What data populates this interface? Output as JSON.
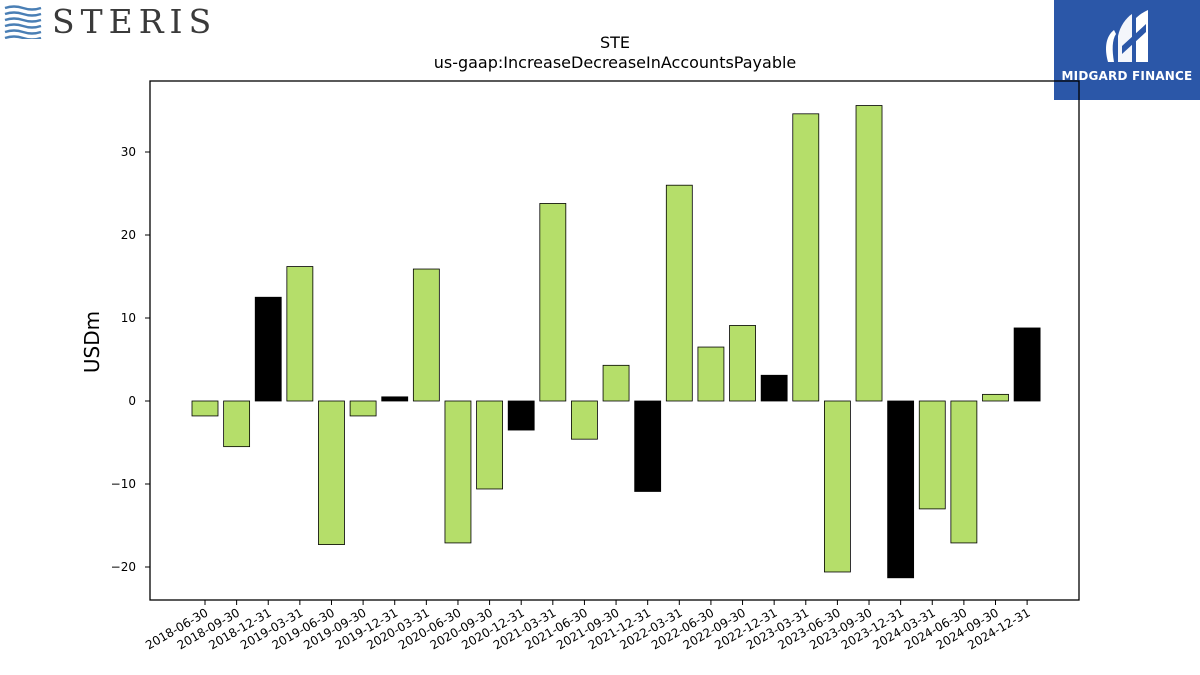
{
  "brand_left": {
    "name": "STERIS",
    "logo_icon": "wave-lines-icon",
    "color": "#4a7fb5"
  },
  "brand_right": {
    "name": "MIDGARD FINANCE",
    "logo_icon": "midgard-m-icon",
    "background": "#2b57a8"
  },
  "chart_data": {
    "type": "bar",
    "title": "STE",
    "subtitle": "us-gaap:IncreaseDecreaseInAccountsPayable",
    "xlabel": "",
    "ylabel": "USDm",
    "ylim": [
      -24,
      38.5
    ],
    "yticks": [
      -20,
      -10,
      0,
      10,
      20,
      30
    ],
    "grid": false,
    "colors": {
      "default": "#b5de6a",
      "q4": "#000000",
      "edge": "#000000"
    },
    "categories": [
      "2018-06-30",
      "2018-09-30",
      "2018-12-31",
      "2019-03-31",
      "2019-06-30",
      "2019-09-30",
      "2019-12-31",
      "2020-03-31",
      "2020-06-30",
      "2020-09-30",
      "2020-12-31",
      "2021-03-31",
      "2021-06-30",
      "2021-09-30",
      "2021-12-31",
      "2022-03-31",
      "2022-06-30",
      "2022-09-30",
      "2022-12-31",
      "2023-03-31",
      "2023-06-30",
      "2023-09-30",
      "2023-12-31",
      "2024-03-31",
      "2024-06-30",
      "2024-09-30",
      "2024-12-31"
    ],
    "values": [
      -1.8,
      -5.5,
      12.5,
      16.2,
      -17.3,
      -1.8,
      0.5,
      15.9,
      -17.1,
      -10.6,
      -3.5,
      23.8,
      -4.6,
      4.3,
      -10.9,
      26.0,
      6.5,
      9.1,
      3.1,
      34.6,
      -20.6,
      35.6,
      -21.3,
      -13.0,
      -17.1,
      0.8,
      8.8
    ]
  }
}
